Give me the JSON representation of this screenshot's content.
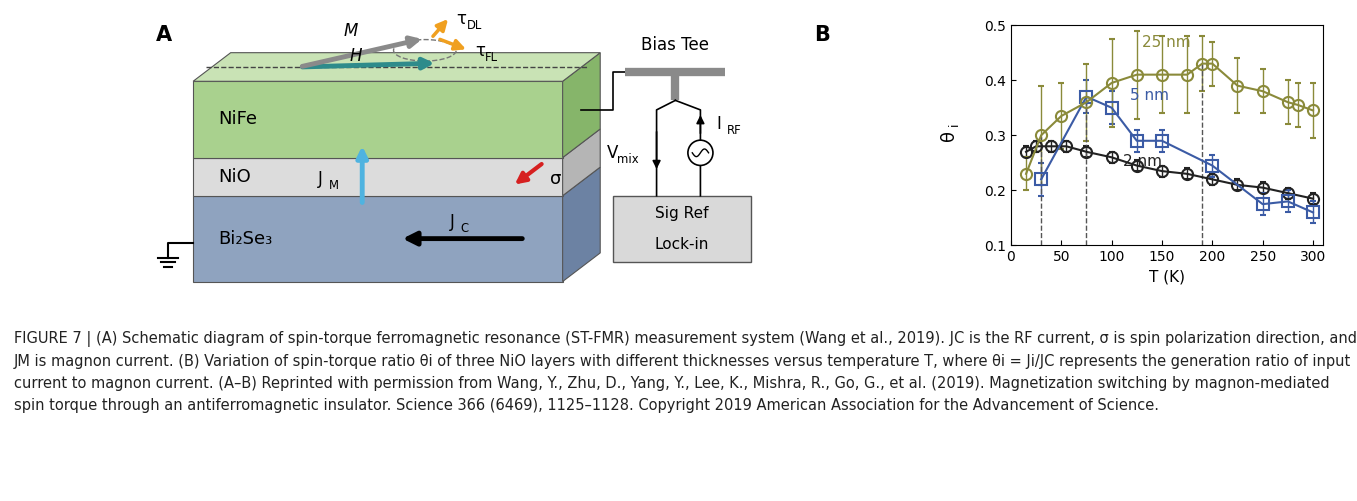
{
  "panel_a": {
    "label": "A",
    "layers": {
      "top": "NiFe",
      "middle": "NiO",
      "bottom": "Bi₂Se₃"
    },
    "magnetization": "M",
    "field": "H",
    "torque_dl": {
      "text": "τ",
      "sub": "DL"
    },
    "torque_fl": {
      "text": "τ",
      "sub": "FL"
    },
    "magnon_current": {
      "text": "J",
      "sub": "M"
    },
    "charge_current": {
      "text": "J",
      "sub": "C"
    },
    "spin": "σ",
    "bias_tee": "Bias Tee",
    "mixing_voltage": {
      "text": "V",
      "sub": "mix"
    },
    "rf_current": {
      "text": "I",
      "sub": "RF"
    },
    "lock_in": [
      "Sig Ref",
      "Lock-in"
    ]
  },
  "chart_data": {
    "label": "B",
    "type": "line",
    "x_label": "T (K)",
    "y_label": {
      "text": "θ",
      "sub": "i"
    },
    "xlim": [
      0,
      310
    ],
    "xticks": [
      0,
      50,
      100,
      150,
      200,
      250,
      300
    ],
    "ylim": [
      0.1,
      0.5
    ],
    "yticks": [
      0.1,
      0.2,
      0.3,
      0.4,
      0.5
    ],
    "series": [
      {
        "name": "2 nm",
        "color": "#222222",
        "marker": "circle",
        "x": [
          15,
          25,
          40,
          55,
          75,
          100,
          125,
          150,
          175,
          200,
          225,
          250,
          275,
          300
        ],
        "values": [
          0.27,
          0.28,
          0.28,
          0.28,
          0.27,
          0.26,
          0.245,
          0.235,
          0.23,
          0.22,
          0.21,
          0.205,
          0.195,
          0.185
        ],
        "errors": [
          0.01,
          0.01,
          0.01,
          0.01,
          0.01,
          0.01,
          0.01,
          0.01,
          0.01,
          0.01,
          0.01,
          0.01,
          0.01,
          0.01
        ]
      },
      {
        "name": "5 nm",
        "color": "#3b5ba5",
        "marker": "square",
        "x": [
          30,
          75,
          100,
          125,
          150,
          200,
          250,
          275,
          300
        ],
        "values": [
          0.22,
          0.37,
          0.35,
          0.29,
          0.29,
          0.245,
          0.175,
          0.18,
          0.16
        ],
        "errors": [
          0.03,
          0.03,
          0.03,
          0.02,
          0.02,
          0.02,
          0.02,
          0.02,
          0.02
        ]
      },
      {
        "name": "25 nm",
        "color": "#8a8a3a",
        "marker": "circle",
        "x": [
          15,
          30,
          50,
          75,
          100,
          125,
          150,
          175,
          190,
          200,
          225,
          250,
          275,
          285,
          300
        ],
        "values": [
          0.23,
          0.3,
          0.335,
          0.36,
          0.395,
          0.41,
          0.41,
          0.41,
          0.43,
          0.43,
          0.39,
          0.38,
          0.36,
          0.355,
          0.345
        ],
        "errors": [
          0.03,
          0.09,
          0.06,
          0.07,
          0.08,
          0.08,
          0.07,
          0.07,
          0.05,
          0.04,
          0.05,
          0.04,
          0.04,
          0.04,
          0.05
        ]
      }
    ],
    "reference_lines": [
      {
        "x": 30,
        "y": 0.3
      },
      {
        "x": 75,
        "y": 0.37
      },
      {
        "x": 190,
        "y": 0.43
      }
    ]
  },
  "caption": "FIGURE 7 | (A) Schematic diagram of spin-torque ferromagnetic resonance (ST-FMR) measurement system (Wang et al., 2019). JC is the RF current, σ is spin polarization direction, and JM is magnon current. (B) Variation of spin-torque ratio θi of three NiO layers with different thicknesses versus temperature T, where θi = Ji/JC represents the generation ratio of input current to magnon current. (A–B) Reprinted with permission from Wang, Y., Zhu, D., Yang, Y., Lee, K., Mishra, R., Go, G., et al. (2019). Magnetization switching by magnon-mediated spin torque through an antiferromagnetic insulator. Science 366 (6469), 1125–1128. Copyright 2019 American Association for the Advancement of Science."
}
